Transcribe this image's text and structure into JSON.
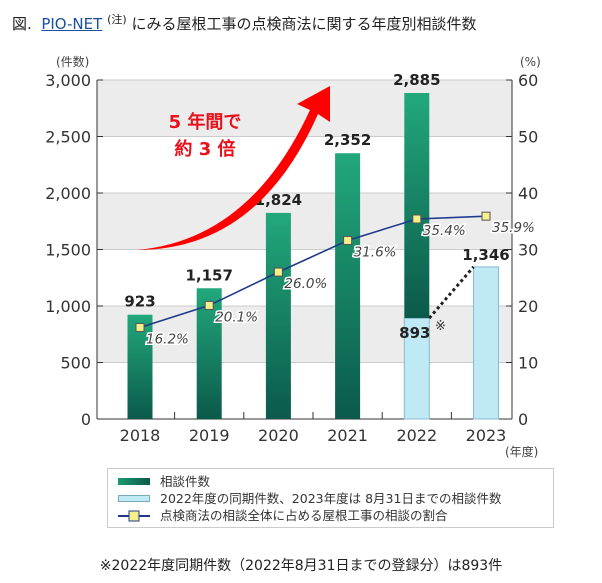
{
  "title": {
    "prefix": "図.",
    "link": "PIO-NET",
    "note": "(注)",
    "rest": "にみる屋根工事の点検商法に関する年度別相談件数"
  },
  "chart_data": {
    "type": "bar+line",
    "categories": [
      "2018",
      "2019",
      "2020",
      "2021",
      "2022",
      "2023"
    ],
    "xlabel": "(年度)",
    "ylabel_left": "(件数)",
    "ylabel_right": "(%)",
    "ylim_left": [
      0,
      3000
    ],
    "ylim_right": [
      0,
      60
    ],
    "yticks_left": [
      "0",
      "500",
      "1,000",
      "1,500",
      "2,000",
      "2,500",
      "3,000"
    ],
    "yticks_right": [
      "0",
      "10",
      "20",
      "30",
      "40",
      "50",
      "60"
    ],
    "series": [
      {
        "name": "相談件数",
        "type": "bar",
        "values": [
          923,
          1157,
          1824,
          2352,
          2885,
          null
        ],
        "labels": [
          "923",
          "1,157",
          "1,824",
          "2,352",
          "2,885",
          ""
        ],
        "color": "#1a9a72"
      },
      {
        "name": "2022年度の同期件数、2023年度は 8月31日までの相談件数",
        "type": "bar",
        "values": [
          null,
          null,
          null,
          null,
          893,
          1346
        ],
        "labels": [
          "",
          "",
          "",
          "",
          "893",
          "1,346"
        ],
        "color": "#bfe9f4"
      },
      {
        "name": "点検商法の相談全体に占める屋根工事の相談の割合",
        "type": "line",
        "axis": "right",
        "values": [
          16.2,
          20.1,
          26.0,
          31.6,
          35.4,
          35.9
        ],
        "labels": [
          "16.2%",
          "20.1%",
          "26.0%",
          "31.6%",
          "35.4%",
          "35.9%"
        ],
        "color": "#1f3a8a"
      }
    ],
    "annotations": {
      "arrow_text_1": "5 年間で",
      "arrow_text_2": "約 3 倍",
      "mark": "※"
    },
    "grid": true,
    "legend": "bottom"
  },
  "footnote": "※2022年度同期件数（2022年8月31日までの登録分）は893件"
}
